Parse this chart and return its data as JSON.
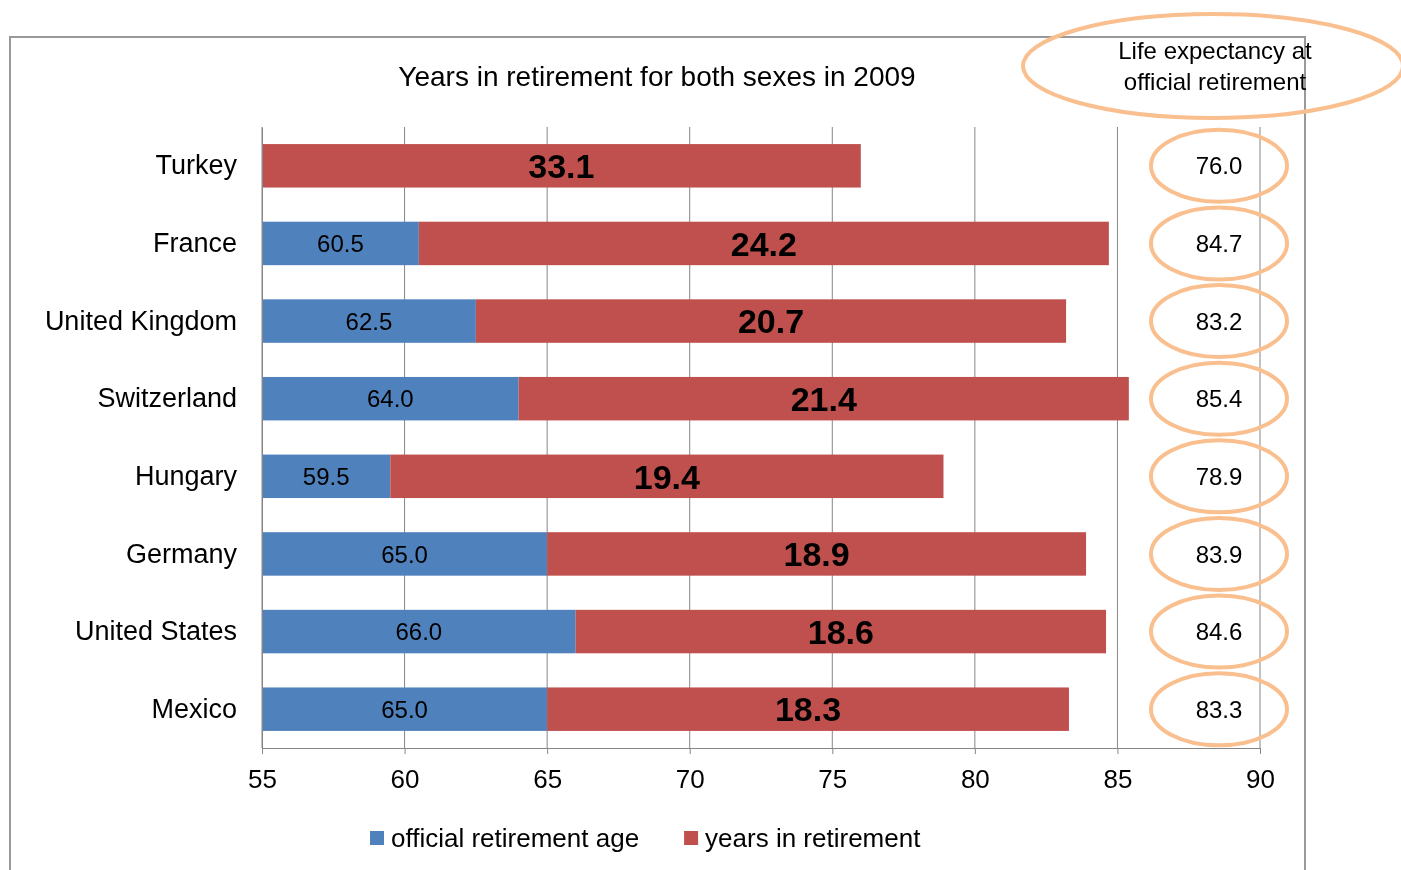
{
  "chart_data": {
    "type": "bar",
    "orientation": "horizontal",
    "stacked": true,
    "title": "Years in retirement for both sexes in 2009",
    "categories": [
      "Turkey",
      "France",
      "United Kingdom",
      "Switzerland",
      "Hungary",
      "Germany",
      "United States",
      "Mexico"
    ],
    "series": [
      {
        "name": "official retirement age",
        "color": "#4f81bd",
        "values": [
          null,
          60.5,
          62.5,
          64.0,
          59.5,
          65.0,
          66.0,
          65.0
        ],
        "value_labels": [
          null,
          "60.5",
          "62.5",
          "64.0",
          "59.5",
          "65.0",
          "66.0",
          "65.0"
        ]
      },
      {
        "name": "years in retirement",
        "color": "#c0504d",
        "base": [
          42.9,
          60.5,
          62.5,
          64.0,
          59.5,
          65.0,
          66.0,
          65.0
        ],
        "values": [
          33.1,
          24.2,
          20.7,
          21.4,
          19.4,
          18.9,
          18.6,
          18.3
        ],
        "value_labels": [
          "33.1",
          "24.2",
          "20.7",
          "21.4",
          "19.4",
          "18.9",
          "18.6",
          "18.3"
        ]
      }
    ],
    "xlim": [
      55,
      90
    ],
    "xticks": [
      55,
      60,
      65,
      70,
      75,
      80,
      85,
      90
    ],
    "grid": "x",
    "legend": "bottom",
    "annotations": [
      "Life expectancy at official retirement",
      "76.0",
      "84.7",
      "83.2",
      "85.4",
      "78.9",
      "83.9",
      "84.6",
      "83.3"
    ]
  }
}
